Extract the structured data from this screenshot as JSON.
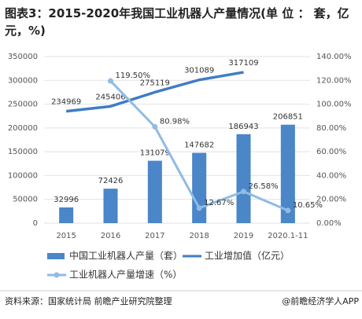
{
  "chart_data": {
    "type": "bar",
    "title": "图表3：2015-2020年我国工业机器人产量情况(单 位 ： 套，亿元，%)",
    "source": "资料来源：国家统计局 前瞻产业研究院整理",
    "watermark": "@前瞻经济学人APP",
    "categories": [
      "2015",
      "2016",
      "2017",
      "2018",
      "2019",
      "2020.1-11"
    ],
    "series": [
      {
        "name": "中国工业机器人产量（套）",
        "type": "bar",
        "color": "#4a86c8",
        "values": [
          32996,
          72426,
          131079,
          147682,
          186943,
          206851
        ]
      },
      {
        "name": "工业增加值（亿元）",
        "type": "line",
        "color": "#3f7cc6",
        "values": [
          234969,
          245406,
          275119,
          301089,
          317109,
          null
        ]
      },
      {
        "name": "工业机器人产量增速（%）",
        "type": "line",
        "axis": "y2",
        "color": "#8fbbe6",
        "markers": true,
        "values": [
          null,
          119.5,
          80.98,
          12.67,
          26.58,
          10.65
        ],
        "value_labels": [
          null,
          "119.50%",
          "80.98%",
          "12.67%",
          "26.58%",
          "10.65%"
        ]
      }
    ],
    "ylim": [
      0,
      350000
    ],
    "yticks": [
      0,
      50000,
      100000,
      150000,
      200000,
      250000,
      300000,
      350000
    ],
    "y2lim": [
      0,
      140
    ],
    "y2ticks": [
      {
        "value": 0,
        "label": "0.00%"
      },
      {
        "value": 20,
        "label": "20.00%"
      },
      {
        "value": 40,
        "label": "40.00%"
      },
      {
        "value": 60,
        "label": "60.00%"
      },
      {
        "value": 80,
        "label": "80.00%"
      },
      {
        "value": 100,
        "label": "100.00%"
      },
      {
        "value": 120,
        "label": "120.00%"
      },
      {
        "value": 140,
        "label": "140.00%"
      }
    ],
    "grid": true
  }
}
